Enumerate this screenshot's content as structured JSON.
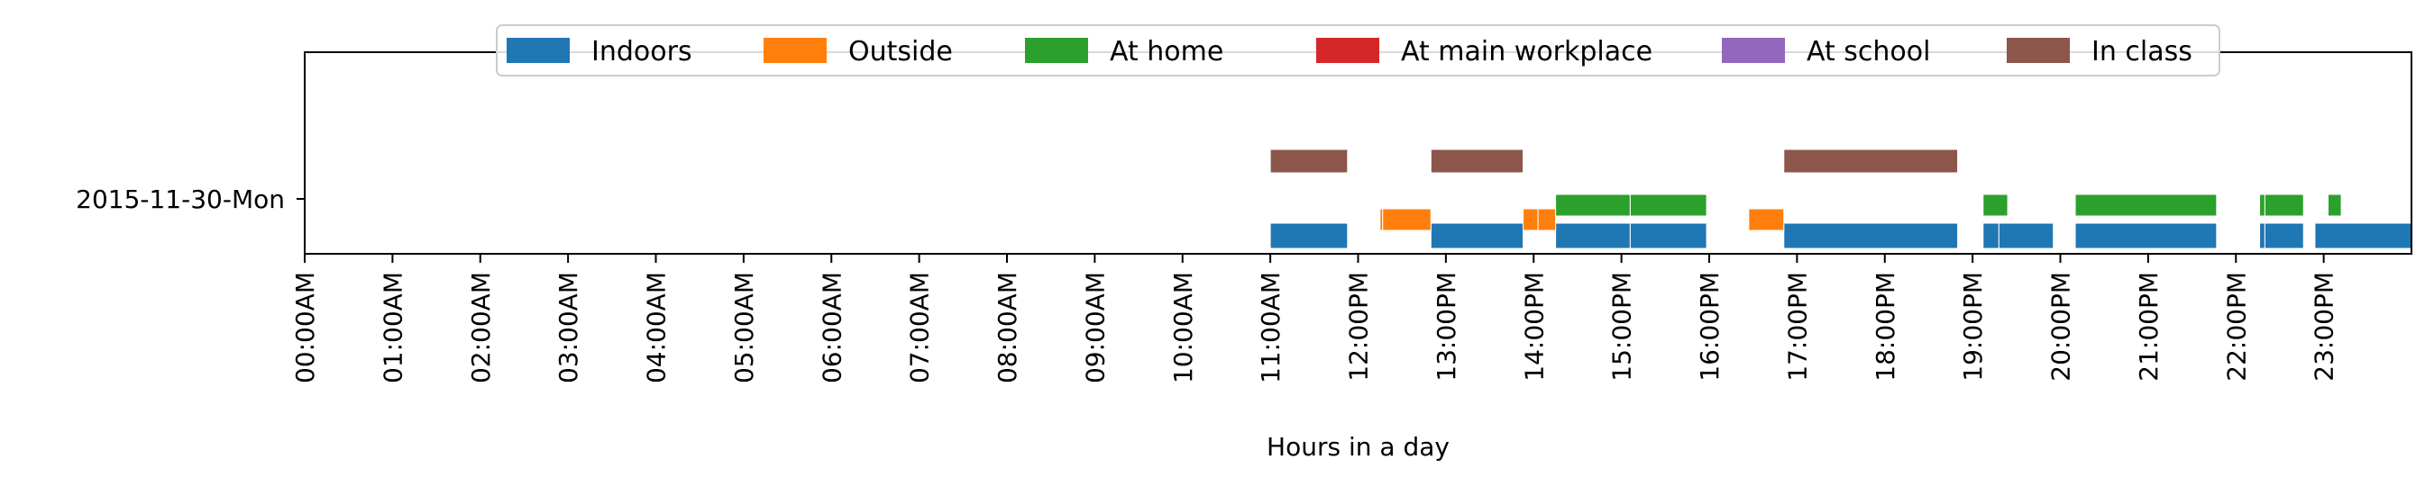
{
  "chart_data": {
    "type": "timeline",
    "title": "",
    "xlabel": "Hours in a day",
    "ylabel": "",
    "xlim": [
      0,
      24
    ],
    "grid": false,
    "legend_position": "top-center",
    "y_categories": [
      "2015-11-30-Mon"
    ],
    "x_tick_labels": [
      "00:00AM",
      "01:00AM",
      "02:00AM",
      "03:00AM",
      "04:00AM",
      "05:00AM",
      "06:00AM",
      "07:00AM",
      "08:00AM",
      "09:00AM",
      "10:00AM",
      "11:00AM",
      "12:00PM",
      "13:00PM",
      "14:00PM",
      "15:00PM",
      "16:00PM",
      "17:00PM",
      "18:00PM",
      "19:00PM",
      "20:00PM",
      "21:00PM",
      "22:00PM",
      "23:00PM"
    ],
    "series": [
      {
        "name": "Indoors",
        "color": "#1f77b4",
        "intervals": [
          [
            11.0,
            11.88
          ],
          [
            12.83,
            13.88
          ],
          [
            14.25,
            15.1
          ],
          [
            15.1,
            15.97
          ],
          [
            16.85,
            18.83
          ],
          [
            19.12,
            19.3
          ],
          [
            19.3,
            19.92
          ],
          [
            20.17,
            21.78
          ],
          [
            22.27,
            22.33
          ],
          [
            22.33,
            22.77
          ],
          [
            22.9,
            24.0
          ]
        ]
      },
      {
        "name": "Outside",
        "color": "#ff7f0e",
        "intervals": [
          [
            12.25,
            12.28
          ],
          [
            12.28,
            12.83
          ],
          [
            13.88,
            14.05
          ],
          [
            14.05,
            14.25
          ],
          [
            16.45,
            16.85
          ]
        ]
      },
      {
        "name": "At home",
        "color": "#2ca02c",
        "intervals": [
          [
            14.25,
            15.1
          ],
          [
            15.1,
            15.97
          ],
          [
            19.12,
            19.4
          ],
          [
            20.17,
            21.78
          ],
          [
            22.27,
            22.33
          ],
          [
            22.33,
            22.77
          ],
          [
            23.05,
            23.2
          ]
        ]
      },
      {
        "name": "At main workplace",
        "color": "#d62728",
        "intervals": []
      },
      {
        "name": "At school",
        "color": "#9467bd",
        "intervals": []
      },
      {
        "name": "In class",
        "color": "#8c564b",
        "intervals": [
          [
            11.0,
            11.88
          ],
          [
            12.83,
            13.88
          ],
          [
            16.85,
            18.83
          ]
        ]
      }
    ]
  }
}
